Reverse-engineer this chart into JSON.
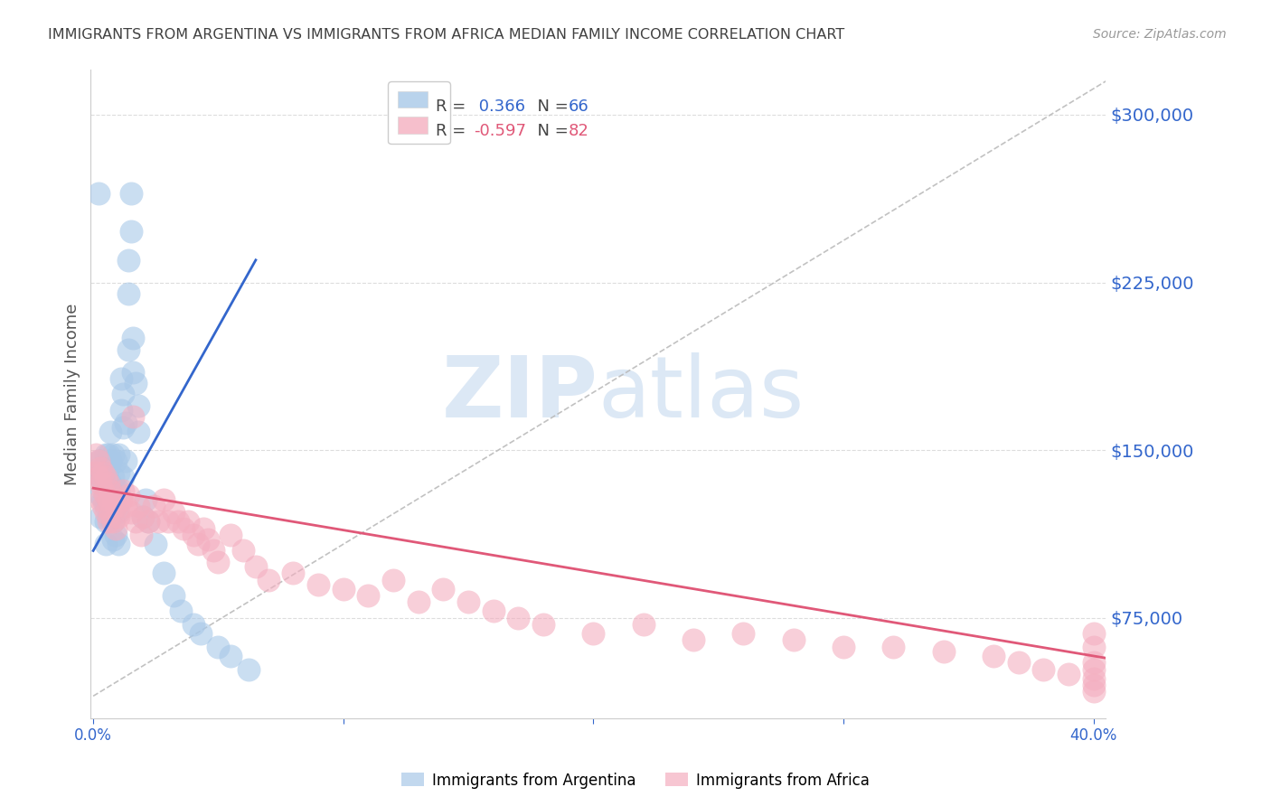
{
  "title": "IMMIGRANTS FROM ARGENTINA VS IMMIGRANTS FROM AFRICA MEDIAN FAMILY INCOME CORRELATION CHART",
  "source": "Source: ZipAtlas.com",
  "ylabel": "Median Family Income",
  "ytick_labels": [
    "$75,000",
    "$150,000",
    "$225,000",
    "$300,000"
  ],
  "ytick_values": [
    75000,
    150000,
    225000,
    300000
  ],
  "ymin": 30000,
  "ymax": 320000,
  "xmin": -0.001,
  "xmax": 0.405,
  "legend_label1": "Immigrants from Argentina",
  "legend_label2": "Immigrants from Africa",
  "argentina_color": "#a8c8e8",
  "africa_color": "#f4afc0",
  "argentina_line_color": "#3366cc",
  "africa_line_color": "#e05878",
  "diagonal_color": "#bbbbbb",
  "background_color": "#ffffff",
  "watermark_color": "#dce8f5",
  "grid_color": "#dddddd",
  "title_color": "#404040",
  "tick_label_color": "#3366cc",
  "source_color": "#999999",
  "arg_x": [
    0.001,
    0.002,
    0.002,
    0.003,
    0.003,
    0.003,
    0.003,
    0.004,
    0.004,
    0.004,
    0.005,
    0.005,
    0.005,
    0.005,
    0.005,
    0.006,
    0.006,
    0.006,
    0.006,
    0.007,
    0.007,
    0.007,
    0.007,
    0.008,
    0.008,
    0.008,
    0.008,
    0.008,
    0.009,
    0.009,
    0.009,
    0.009,
    0.01,
    0.01,
    0.01,
    0.01,
    0.01,
    0.011,
    0.011,
    0.012,
    0.012,
    0.012,
    0.013,
    0.013,
    0.014,
    0.014,
    0.014,
    0.015,
    0.015,
    0.016,
    0.016,
    0.017,
    0.018,
    0.018,
    0.02,
    0.021,
    0.022,
    0.025,
    0.028,
    0.032,
    0.035,
    0.04,
    0.043,
    0.05,
    0.055,
    0.062
  ],
  "arg_y": [
    140000,
    145000,
    265000,
    145000,
    138000,
    130000,
    120000,
    135000,
    128000,
    142000,
    148000,
    138000,
    125000,
    118000,
    108000,
    142000,
    148000,
    132000,
    120000,
    158000,
    145000,
    135000,
    125000,
    148000,
    138000,
    128000,
    118000,
    110000,
    145000,
    132000,
    122000,
    112000,
    148000,
    140000,
    132000,
    122000,
    108000,
    182000,
    168000,
    175000,
    160000,
    138000,
    162000,
    145000,
    235000,
    220000,
    195000,
    265000,
    248000,
    200000,
    185000,
    180000,
    170000,
    158000,
    120000,
    128000,
    118000,
    108000,
    95000,
    85000,
    78000,
    72000,
    68000,
    62000,
    58000,
    52000
  ],
  "afr_x": [
    0.001,
    0.001,
    0.002,
    0.002,
    0.003,
    0.003,
    0.003,
    0.004,
    0.004,
    0.004,
    0.005,
    0.005,
    0.005,
    0.006,
    0.006,
    0.006,
    0.007,
    0.007,
    0.008,
    0.008,
    0.009,
    0.009,
    0.01,
    0.011,
    0.012,
    0.013,
    0.014,
    0.015,
    0.016,
    0.017,
    0.018,
    0.019,
    0.02,
    0.022,
    0.024,
    0.026,
    0.028,
    0.03,
    0.032,
    0.034,
    0.036,
    0.038,
    0.04,
    0.042,
    0.044,
    0.046,
    0.048,
    0.05,
    0.055,
    0.06,
    0.065,
    0.07,
    0.08,
    0.09,
    0.1,
    0.11,
    0.12,
    0.13,
    0.14,
    0.15,
    0.16,
    0.17,
    0.18,
    0.2,
    0.22,
    0.24,
    0.26,
    0.28,
    0.3,
    0.32,
    0.34,
    0.36,
    0.37,
    0.38,
    0.39,
    0.4,
    0.4,
    0.4,
    0.4,
    0.4,
    0.4,
    0.4
  ],
  "afr_y": [
    148000,
    140000,
    145000,
    138000,
    142000,
    135000,
    128000,
    140000,
    132000,
    125000,
    138000,
    130000,
    122000,
    135000,
    128000,
    118000,
    132000,
    122000,
    128000,
    118000,
    125000,
    115000,
    120000,
    128000,
    132000,
    125000,
    130000,
    122000,
    165000,
    118000,
    125000,
    112000,
    120000,
    118000,
    125000,
    118000,
    128000,
    118000,
    122000,
    118000,
    115000,
    118000,
    112000,
    108000,
    115000,
    110000,
    105000,
    100000,
    112000,
    105000,
    98000,
    92000,
    95000,
    90000,
    88000,
    85000,
    92000,
    82000,
    88000,
    82000,
    78000,
    75000,
    72000,
    68000,
    72000,
    65000,
    68000,
    65000,
    62000,
    62000,
    60000,
    58000,
    55000,
    52000,
    50000,
    48000,
    62000,
    55000,
    45000,
    68000,
    52000,
    42000
  ],
  "arg_line_x": [
    0.0,
    0.065
  ],
  "arg_line_y": [
    105000,
    235000
  ],
  "afr_line_x": [
    0.0,
    0.405
  ],
  "afr_line_y": [
    133000,
    57000
  ]
}
